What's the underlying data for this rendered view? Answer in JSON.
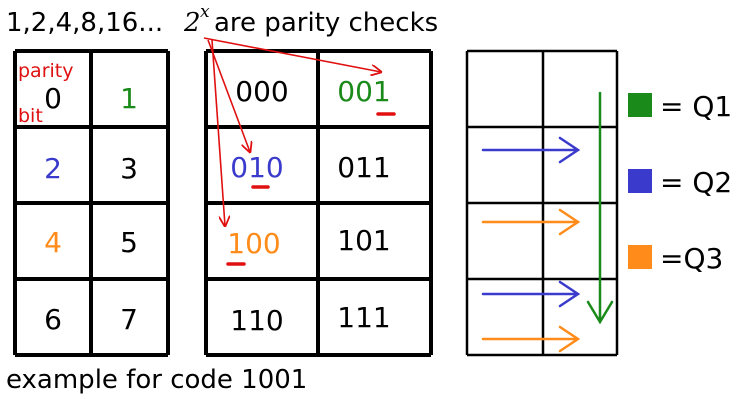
{
  "title": {
    "prefix": "1,2,4,8,16...",
    "math_base": "2",
    "math_exp": "x",
    "suffix": "are parity checks"
  },
  "left_grid": {
    "parity_label_1": "parity",
    "parity_label_2": "bit",
    "cells": [
      "0",
      "1",
      "2",
      "3",
      "4",
      "5",
      "6",
      "7"
    ]
  },
  "middle_grid": {
    "cells": [
      "000",
      "001",
      "010",
      "011",
      "100",
      "101",
      "110",
      "111"
    ]
  },
  "legend": {
    "q1": "= Q1",
    "q2": "= Q2",
    "q3": "=Q3"
  },
  "footer": "example for code 1001",
  "colors": {
    "q1": "#1a8a1a",
    "q2": "#3a3acc",
    "q3": "#ff8c1a",
    "annotation": "#e01010",
    "ink": "#000000"
  }
}
